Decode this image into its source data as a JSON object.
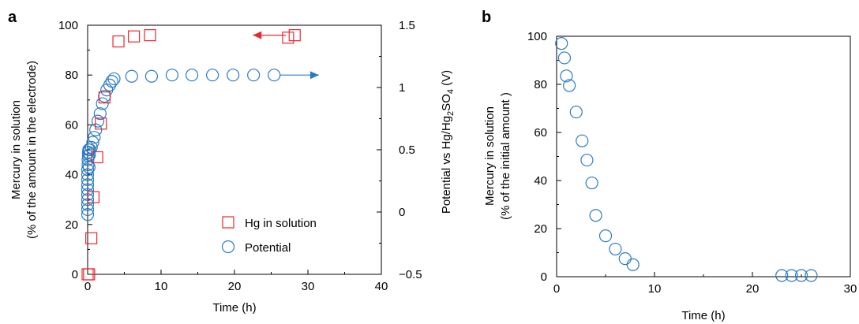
{
  "colors": {
    "hg": "#e8282e",
    "potential": "#2a7bc4",
    "axis": "#000000"
  },
  "panel_a": {
    "letter": "a"
  },
  "panel_b": {
    "letter": "b"
  },
  "chart_data": [
    {
      "type": "scatter",
      "panel": "a",
      "xlabel": "Time (h)",
      "ylabel": [
        "Mercury in solution",
        "(% of the amount in the electrode)"
      ],
      "y2label_parts": [
        "Potential vs Hg/Hg",
        "2",
        "SO",
        "4",
        " (V)"
      ],
      "xlim": [
        0,
        40
      ],
      "ylim": [
        0,
        100
      ],
      "y2lim": [
        -0.5,
        1.5
      ],
      "xticks": [
        0,
        10,
        20,
        30,
        40
      ],
      "yticks": [
        0,
        20,
        40,
        60,
        80,
        100
      ],
      "y2ticks": [
        -0.5,
        0,
        0.5,
        1,
        1.5
      ],
      "y2ticklabels": [
        "−0.5",
        "0",
        "0.5",
        "1",
        "1.5"
      ],
      "legend": {
        "position": "bottom-center",
        "entries": [
          "Hg in solution",
          "Potential"
        ]
      },
      "series": [
        {
          "name": "Hg in solution",
          "marker": "square",
          "color": "#e8282e",
          "axis": "left",
          "points": [
            [
              0,
              0
            ],
            [
              0.2,
              0
            ],
            [
              0.5,
              14.5
            ],
            [
              0.8,
              31
            ],
            [
              1.3,
              47
            ],
            [
              1.8,
              60.5
            ],
            [
              2.3,
              71
            ],
            [
              4.2,
              93.5
            ],
            [
              6.3,
              95.5
            ],
            [
              8.5,
              96
            ],
            [
              27.3,
              95
            ],
            [
              28.2,
              96
            ]
          ]
        },
        {
          "name": "Potential",
          "marker": "circle",
          "color": "#2a7bc4",
          "axis": "right",
          "points": [
            [
              0,
              -0.02
            ],
            [
              0,
              0.02
            ],
            [
              0,
              0.06
            ],
            [
              0,
              0.1
            ],
            [
              0,
              0.14
            ],
            [
              0,
              0.18
            ],
            [
              0,
              0.22
            ],
            [
              0,
              0.26
            ],
            [
              0,
              0.3
            ],
            [
              0,
              0.34
            ],
            [
              0.05,
              0.38
            ],
            [
              0.05,
              0.42
            ],
            [
              0.1,
              0.45
            ],
            [
              0.1,
              0.48
            ],
            [
              0.15,
              0.5
            ],
            [
              0.2,
              0.36
            ],
            [
              0.25,
              0.46
            ],
            [
              0.3,
              0.5
            ],
            [
              0.5,
              0.52
            ],
            [
              0.7,
              0.56
            ],
            [
              0.9,
              0.6
            ],
            [
              1.1,
              0.66
            ],
            [
              1.4,
              0.73
            ],
            [
              1.7,
              0.79
            ],
            [
              2.0,
              0.87
            ],
            [
              2.3,
              0.93
            ],
            [
              2.6,
              0.98
            ],
            [
              3.0,
              1.02
            ],
            [
              3.3,
              1.05
            ],
            [
              3.6,
              1.07
            ],
            [
              6.0,
              1.09
            ],
            [
              8.7,
              1.09
            ],
            [
              11.5,
              1.1
            ],
            [
              14.2,
              1.1
            ],
            [
              17.0,
              1.1
            ],
            [
              19.8,
              1.1
            ],
            [
              22.6,
              1.1
            ],
            [
              25.4,
              1.1
            ]
          ]
        }
      ],
      "annotations": [
        {
          "type": "arrow",
          "color": "#e8282e",
          "direction": "left",
          "from": [
            27,
            96
          ],
          "to": [
            22.5,
            96
          ],
          "axis": "left"
        },
        {
          "type": "arrow",
          "color": "#2a7bc4",
          "direction": "right",
          "from": [
            26.2,
            1.1
          ],
          "to": [
            31.5,
            1.1
          ],
          "axis": "right"
        }
      ]
    },
    {
      "type": "scatter",
      "panel": "b",
      "xlabel": "Time (h)",
      "ylabel": [
        "Mercury in solution",
        "(% of the initial amount )"
      ],
      "xlim": [
        0,
        30
      ],
      "ylim": [
        0,
        100
      ],
      "xticks": [
        0,
        10,
        20,
        30
      ],
      "yticks": [
        0,
        20,
        40,
        60,
        80,
        100
      ],
      "series": [
        {
          "marker": "circle",
          "color": "#2a7bc4",
          "points": [
            [
              0.5,
              97
            ],
            [
              0.8,
              91
            ],
            [
              1.0,
              83.5
            ],
            [
              1.3,
              79.5
            ],
            [
              2.0,
              68.5
            ],
            [
              2.6,
              56.5
            ],
            [
              3.1,
              48.5
            ],
            [
              3.6,
              39
            ],
            [
              4.0,
              25.5
            ],
            [
              5.0,
              17
            ],
            [
              6.0,
              11.5
            ],
            [
              7.0,
              7.5
            ],
            [
              7.8,
              5
            ],
            [
              23,
              0.5
            ],
            [
              24,
              0.5
            ],
            [
              25,
              0.5
            ],
            [
              26,
              0.5
            ]
          ]
        }
      ]
    }
  ]
}
